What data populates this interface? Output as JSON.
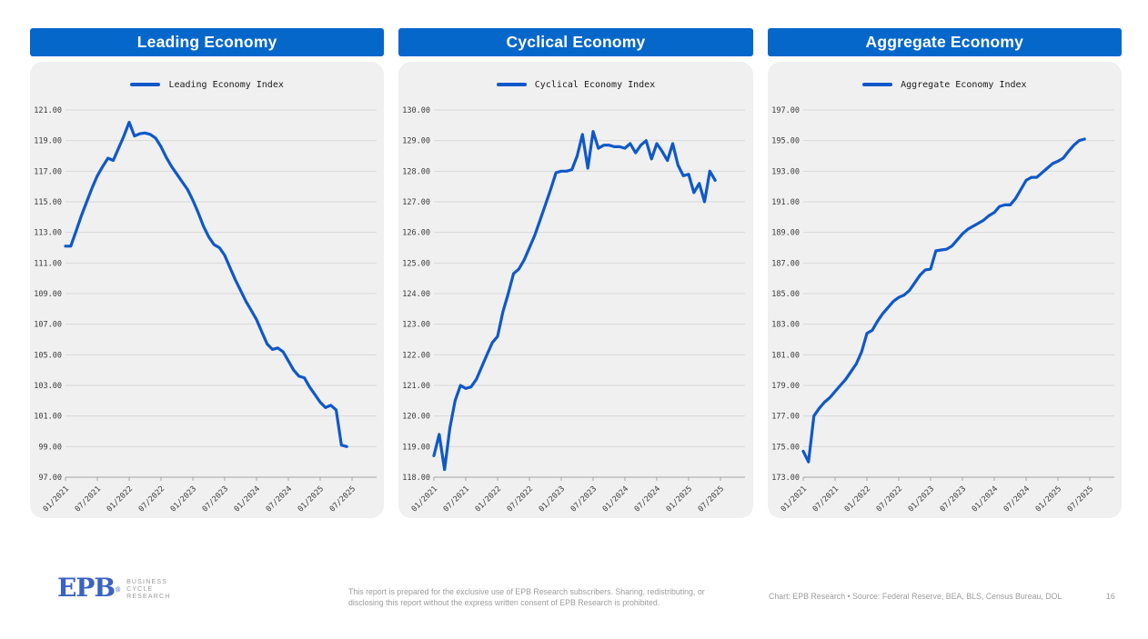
{
  "page": {
    "background": "#ffffff",
    "header_blue": "#0667cb",
    "line_blue": "#0f58c9",
    "panel_bg": "#f0f0f1",
    "grid_color": "#d8d8d8",
    "axis_color": "#a3a3a3",
    "tick_label_color": "#3b3b3b",
    "legend_text_color": "#1c1c1c",
    "footer_text_color": "#9c9c9c",
    "logo_blue": "#3a62c2"
  },
  "chart_data": [
    {
      "type": "line",
      "title": "Leading Economy",
      "legend": "Leading Economy Index",
      "legend_position": "top-center",
      "grid": true,
      "x_start": "01/2021",
      "x_frequency": "monthly",
      "x_tick_labels": [
        "01/2021",
        "07/2021",
        "01/2022",
        "07/2022",
        "01/2023",
        "07/2023",
        "01/2024",
        "07/2024",
        "01/2025",
        "07/2025"
      ],
      "ylim": [
        97,
        121
      ],
      "y_step": 2,
      "values": [
        112.1,
        112.1,
        113.1,
        114.1,
        115.0,
        115.9,
        116.7,
        117.3,
        117.85,
        117.7,
        118.5,
        119.3,
        120.2,
        119.3,
        119.45,
        119.5,
        119.4,
        119.15,
        118.6,
        117.9,
        117.3,
        116.8,
        116.3,
        115.8,
        115.1,
        114.3,
        113.4,
        112.7,
        112.2,
        112.0,
        111.5,
        110.7,
        109.9,
        109.2,
        108.5,
        107.9,
        107.3,
        106.5,
        105.7,
        105.35,
        105.45,
        105.2,
        104.6,
        104.0,
        103.6,
        103.5,
        102.9,
        102.4,
        101.9,
        101.55,
        101.7,
        101.4,
        99.1,
        99.0
      ]
    },
    {
      "type": "line",
      "title": "Cyclical Economy",
      "legend": "Cyclical Economy Index",
      "legend_position": "top-center",
      "grid": true,
      "x_start": "01/2021",
      "x_frequency": "monthly",
      "x_tick_labels": [
        "01/2021",
        "07/2021",
        "01/2022",
        "07/2022",
        "01/2023",
        "07/2023",
        "01/2024",
        "07/2024",
        "01/2025",
        "07/2025"
      ],
      "ylim": [
        118,
        130
      ],
      "y_step": 1,
      "values": [
        118.7,
        119.4,
        118.25,
        119.6,
        120.5,
        121.0,
        120.9,
        120.95,
        121.2,
        121.6,
        122.0,
        122.4,
        122.6,
        123.4,
        124.0,
        124.65,
        124.8,
        125.1,
        125.5,
        125.9,
        126.4,
        126.9,
        127.4,
        127.95,
        128.0,
        128.0,
        128.05,
        128.5,
        129.2,
        128.1,
        129.3,
        128.75,
        128.85,
        128.85,
        128.8,
        128.8,
        128.75,
        128.9,
        128.6,
        128.85,
        129.0,
        128.4,
        128.9,
        128.65,
        128.35,
        128.9,
        128.2,
        127.85,
        127.9,
        127.3,
        127.6,
        127.0,
        128.0,
        127.7
      ]
    },
    {
      "type": "line",
      "title": "Aggregate Economy",
      "legend": "Aggregate Economy Index",
      "legend_position": "top-center",
      "grid": true,
      "x_start": "01/2021",
      "x_frequency": "monthly",
      "x_tick_labels": [
        "01/2021",
        "07/2021",
        "01/2022",
        "07/2022",
        "01/2023",
        "07/2023",
        "01/2024",
        "07/2024",
        "01/2025",
        "07/2025"
      ],
      "ylim": [
        173,
        197
      ],
      "y_step": 2,
      "values": [
        174.7,
        174.0,
        177.0,
        177.5,
        177.9,
        178.2,
        178.6,
        179.0,
        179.4,
        179.9,
        180.4,
        181.2,
        182.4,
        182.6,
        183.2,
        183.7,
        184.1,
        184.5,
        184.75,
        184.9,
        185.2,
        185.7,
        186.2,
        186.55,
        186.6,
        187.8,
        187.85,
        187.9,
        188.1,
        188.5,
        188.9,
        189.2,
        189.4,
        189.6,
        189.8,
        190.1,
        190.3,
        190.7,
        190.8,
        190.8,
        191.2,
        191.8,
        192.4,
        192.6,
        192.6,
        192.9,
        193.2,
        193.5,
        193.65,
        193.85,
        194.3,
        194.7,
        195.0,
        195.1
      ]
    }
  ],
  "footer": {
    "logo": {
      "brand": "EPB",
      "reg_mark": "®",
      "tagline_lines": [
        "BUSINESS",
        "CYCLE",
        "RESEARCH"
      ]
    },
    "disclaimer_lines": [
      "This report is prepared for the exclusive use of EPB Research subscribers. Sharing, redistributing, or",
      "disclosing this report without the express written consent of EPB Research is prohibited."
    ],
    "credit": "Chart: EPB Research  •  Source: Federal Reserve, BEA, BLS, Census Bureau, DOL",
    "page_number": "16"
  }
}
